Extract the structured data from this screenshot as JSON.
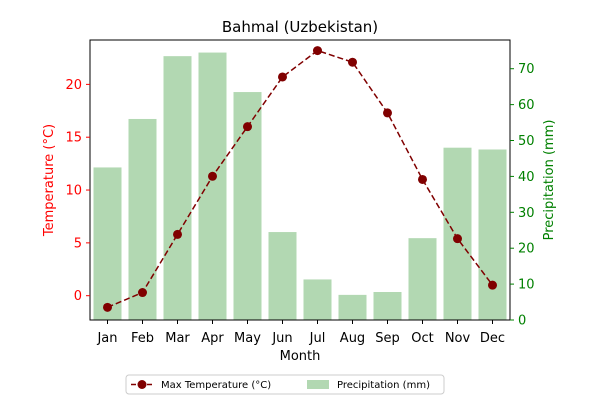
{
  "chart_data": {
    "type": "bar+line",
    "title": "Bahmal (Uzbekistan)",
    "xlabel": "Month",
    "categories": [
      "Jan",
      "Feb",
      "Mar",
      "Apr",
      "May",
      "Jun",
      "Jul",
      "Aug",
      "Sep",
      "Oct",
      "Nov",
      "Dec"
    ],
    "left_axis": {
      "label": "Temperature (°C)",
      "color": "#ff0000",
      "ylim": [
        -2.3,
        24.2
      ],
      "ticks": [
        0,
        5,
        10,
        15,
        20
      ]
    },
    "right_axis": {
      "label": "Precipitation (mm)",
      "color": "#008000",
      "ylim": [
        0,
        78
      ],
      "ticks": [
        0,
        10,
        20,
        30,
        40,
        50,
        60,
        70
      ]
    },
    "series": [
      {
        "name": "Max Temperature (°C)",
        "kind": "line",
        "axis": "left",
        "color": "#800000",
        "line_style": "dashed",
        "marker": "circle",
        "values": [
          -1.1,
          0.3,
          5.8,
          11.3,
          16.0,
          20.7,
          23.2,
          22.1,
          17.3,
          11.0,
          5.4,
          1.0
        ]
      },
      {
        "name": "Precipitation (mm)",
        "kind": "bar",
        "axis": "right",
        "color": "#b2d8b2",
        "values": [
          42.5,
          56.0,
          73.5,
          74.5,
          63.5,
          24.5,
          11.3,
          7.0,
          7.8,
          22.8,
          48.0,
          47.5
        ]
      }
    ],
    "legend": {
      "placement": "bottom-center",
      "columns": 2
    },
    "grid": false
  }
}
